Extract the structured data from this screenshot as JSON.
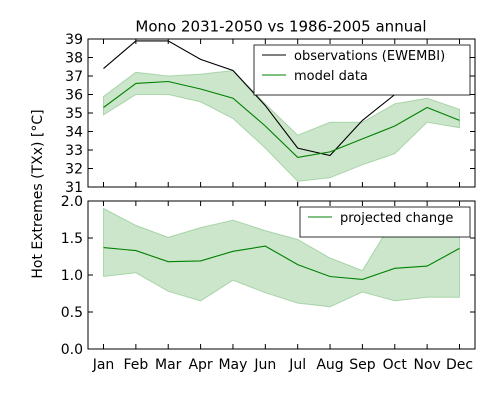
{
  "chart_data": [
    {
      "type": "line",
      "title": "Mono 2031-2050 vs 1986-2005 annual",
      "ylabel": "Hot Extremes (TXx) [$^\\circ C$]",
      "ylabel_display": "Hot Extremes (TXx) [°C]",
      "ylim": [
        31,
        39
      ],
      "yticks": [
        "31",
        "32",
        "33",
        "34",
        "35",
        "36",
        "37",
        "38",
        "39"
      ],
      "categories": [
        "Jan",
        "Feb",
        "Mar",
        "Apr",
        "May",
        "Jun",
        "Jul",
        "Aug",
        "Sep",
        "Oct",
        "Nov",
        "Dec"
      ],
      "legend_position": "top-right",
      "series": [
        {
          "name": "observations (EWEMBI)",
          "color": "#000000",
          "values": [
            37.4,
            38.9,
            38.9,
            37.9,
            37.3,
            35.4,
            33.1,
            32.7,
            34.6,
            36.0,
            37.6,
            36.9
          ]
        },
        {
          "name": "model data",
          "color": "#008000",
          "values": [
            35.3,
            36.6,
            36.7,
            36.3,
            35.8,
            34.3,
            32.6,
            32.9,
            33.6,
            34.3,
            35.3,
            34.6
          ]
        }
      ],
      "band": {
        "color": "#008000",
        "low": [
          34.9,
          36.0,
          36.0,
          35.6,
          34.7,
          33.1,
          31.3,
          31.5,
          32.2,
          32.8,
          34.5,
          34.2
        ],
        "high": [
          35.9,
          37.2,
          37.0,
          37.1,
          37.3,
          35.5,
          33.8,
          34.5,
          34.5,
          35.5,
          35.8,
          35.2
        ]
      }
    },
    {
      "type": "line",
      "ylim": [
        0.0,
        2.0
      ],
      "yticks": [
        "0.0",
        "0.5",
        "1.0",
        "1.5",
        "2.0"
      ],
      "categories": [
        "Jan",
        "Feb",
        "Mar",
        "Apr",
        "May",
        "Jun",
        "Jul",
        "Aug",
        "Sep",
        "Oct",
        "Nov",
        "Dec"
      ],
      "legend_position": "top-right",
      "series": [
        {
          "name": "projected change",
          "color": "#008000",
          "values": [
            1.37,
            1.33,
            1.18,
            1.19,
            1.32,
            1.39,
            1.14,
            0.98,
            0.94,
            1.09,
            1.12,
            1.36
          ]
        }
      ],
      "band": {
        "color": "#008000",
        "low": [
          0.98,
          1.03,
          0.78,
          0.65,
          0.93,
          0.76,
          0.62,
          0.57,
          0.77,
          0.65,
          0.7,
          0.7
        ],
        "high": [
          1.9,
          1.67,
          1.51,
          1.64,
          1.74,
          1.6,
          1.48,
          1.23,
          1.06,
          1.78,
          1.92,
          1.85
        ]
      }
    }
  ]
}
